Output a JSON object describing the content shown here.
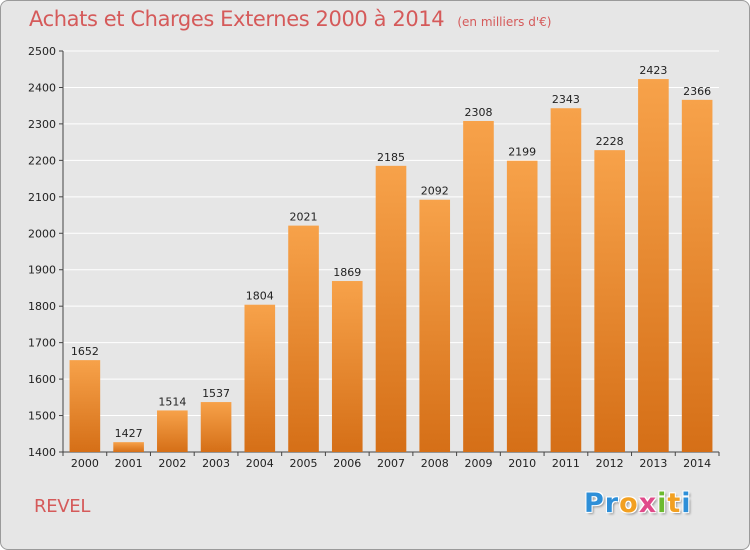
{
  "chart_data": {
    "type": "bar",
    "title": "Achats et Charges Externes 2000 à 2014",
    "unit_label": "(en milliers d'€)",
    "categories": [
      "2000",
      "2001",
      "2002",
      "2003",
      "2004",
      "2005",
      "2006",
      "2007",
      "2008",
      "2009",
      "2010",
      "2011",
      "2012",
      "2013",
      "2014"
    ],
    "values": [
      1652,
      1427,
      1514,
      1537,
      1804,
      2021,
      1869,
      2185,
      2092,
      2308,
      2199,
      2343,
      2228,
      2423,
      2366
    ],
    "ylim": [
      1400,
      2500
    ],
    "yticks": [
      1400,
      1500,
      1600,
      1700,
      1800,
      1900,
      2000,
      2100,
      2200,
      2300,
      2400,
      2500
    ],
    "grid": true,
    "legend": "none",
    "bar_color_top": "#f7a24a",
    "bar_color_bottom": "#d56f17",
    "grid_color": "#ffffff"
  },
  "location": "REVEL",
  "logo": {
    "letters": [
      "P",
      "r",
      "o",
      "x",
      "i",
      "t",
      "i"
    ],
    "colors": [
      "#2e8fd8",
      "#2e8fd8",
      "#f2a021",
      "#e04a8a",
      "#6cba2f",
      "#f2a021",
      "#2e8fd8"
    ]
  }
}
